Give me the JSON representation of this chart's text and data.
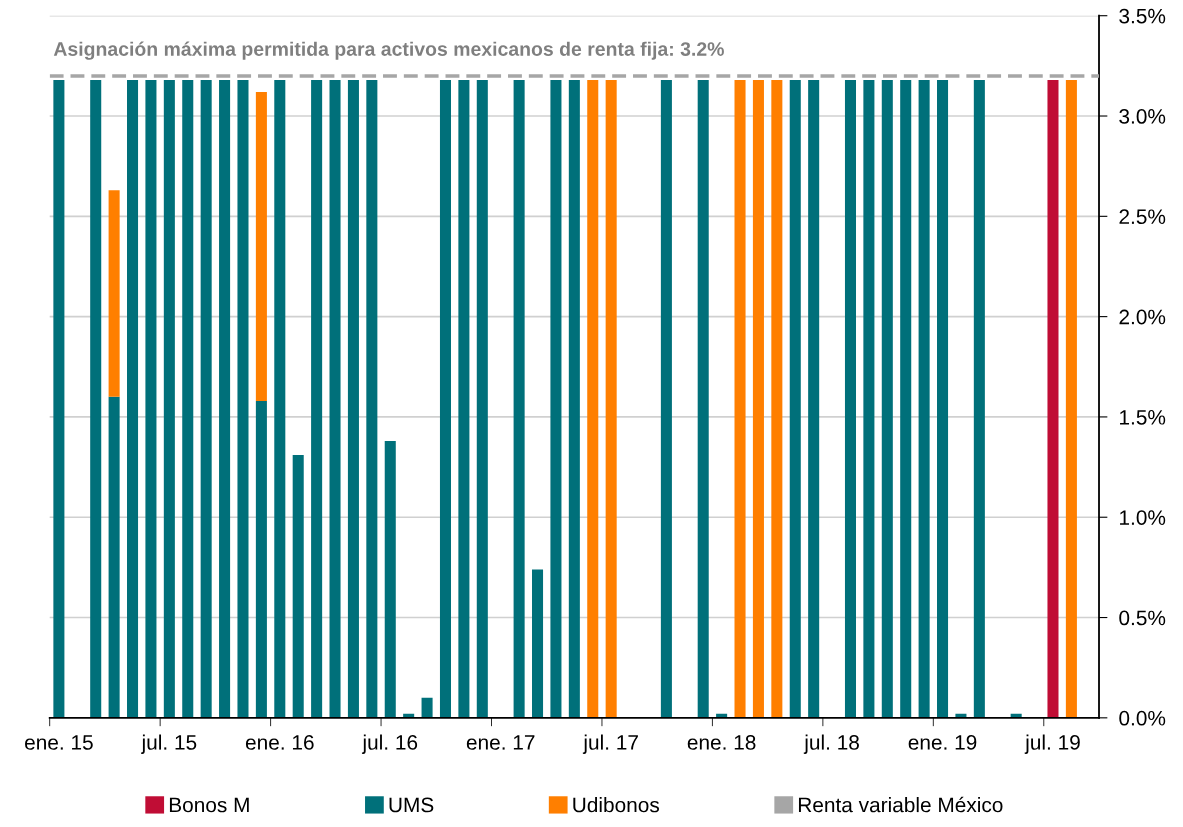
{
  "chart_data": {
    "type": "bar",
    "stacked": true,
    "categories": [
      "ene. 15",
      null,
      null,
      null,
      null,
      null,
      "jul. 15",
      null,
      null,
      null,
      null,
      null,
      "ene. 16",
      null,
      null,
      null,
      null,
      null,
      "jul. 16",
      null,
      null,
      null,
      null,
      null,
      "ene. 17",
      null,
      null,
      null,
      null,
      null,
      "jul. 17",
      null,
      null,
      null,
      null,
      null,
      "ene. 18",
      null,
      null,
      null,
      null,
      null,
      "jul. 18",
      null,
      null,
      null,
      null,
      null,
      "ene. 19",
      null,
      null,
      null,
      null,
      null,
      "jul. 19",
      null,
      null
    ],
    "series": [
      {
        "name": "Bonos M",
        "color": "#c00d35",
        "values": [
          null,
          null,
          null,
          null,
          null,
          null,
          null,
          null,
          null,
          null,
          null,
          null,
          null,
          null,
          null,
          null,
          null,
          null,
          null,
          null,
          null,
          null,
          null,
          null,
          null,
          null,
          null,
          null,
          null,
          null,
          null,
          null,
          null,
          null,
          null,
          null,
          null,
          null,
          null,
          null,
          null,
          null,
          null,
          null,
          null,
          null,
          null,
          null,
          null,
          null,
          null,
          null,
          null,
          null,
          3.18,
          null,
          null
        ]
      },
      {
        "name": "UMS",
        "color": "#00707a",
        "values": [
          3.18,
          null,
          3.18,
          1.6,
          3.18,
          3.18,
          3.18,
          3.18,
          3.18,
          3.18,
          3.18,
          1.58,
          3.18,
          1.31,
          3.18,
          3.18,
          3.18,
          3.18,
          1.38,
          0.02,
          0.1,
          3.18,
          3.18,
          3.18,
          null,
          3.18,
          0.74,
          3.18,
          3.18,
          null,
          null,
          null,
          null,
          3.18,
          null,
          3.18,
          0.02,
          null,
          null,
          null,
          3.18,
          3.18,
          null,
          3.18,
          3.18,
          3.18,
          3.18,
          3.18,
          3.18,
          0.02,
          3.18,
          null,
          0.02,
          null,
          null,
          null,
          null
        ]
      },
      {
        "name": "Udibonos",
        "color": "#ff7f00",
        "values": [
          null,
          null,
          null,
          1.03,
          null,
          null,
          null,
          null,
          null,
          null,
          null,
          1.54,
          null,
          null,
          null,
          null,
          null,
          null,
          null,
          null,
          null,
          null,
          null,
          null,
          null,
          null,
          null,
          null,
          null,
          3.18,
          3.18,
          null,
          null,
          null,
          null,
          null,
          null,
          3.18,
          3.18,
          3.18,
          null,
          null,
          null,
          null,
          null,
          null,
          null,
          null,
          null,
          null,
          null,
          null,
          null,
          null,
          null,
          3.18,
          null
        ]
      },
      {
        "name": "Renta variable México",
        "color": "#a6a6a6",
        "values": [
          null,
          null,
          null,
          null,
          null,
          null,
          null,
          null,
          null,
          null,
          null,
          null,
          null,
          null,
          null,
          null,
          null,
          null,
          null,
          null,
          null,
          null,
          null,
          null,
          null,
          null,
          null,
          null,
          null,
          null,
          null,
          null,
          null,
          null,
          null,
          null,
          null,
          null,
          null,
          null,
          null,
          null,
          null,
          null,
          null,
          null,
          null,
          null,
          null,
          null,
          null,
          null,
          null,
          null,
          null,
          null,
          null
        ]
      }
    ],
    "ylim": [
      0,
      3.5
    ],
    "yticks": [
      {
        "value": 0,
        "label": "0.0%"
      },
      {
        "value": 0.5,
        "label": "0.5%"
      },
      {
        "value": 1.0,
        "label": "1.0%"
      },
      {
        "value": 1.5,
        "label": "1.5%"
      },
      {
        "value": 2.0,
        "label": "2.0%"
      },
      {
        "value": 2.5,
        "label": "2.5%"
      },
      {
        "value": 3.0,
        "label": "3.0%"
      },
      {
        "value": 3.5,
        "label": "3.5%"
      }
    ],
    "ref_lines": [
      {
        "axis": "y",
        "value": 3.2,
        "label": "Asignación máxima permitida para activos mexicanos de renta fija: 3.2%",
        "color": "#a6a6a6",
        "line_style": "dashed"
      }
    ],
    "grid": "y",
    "legend": "bottom"
  }
}
